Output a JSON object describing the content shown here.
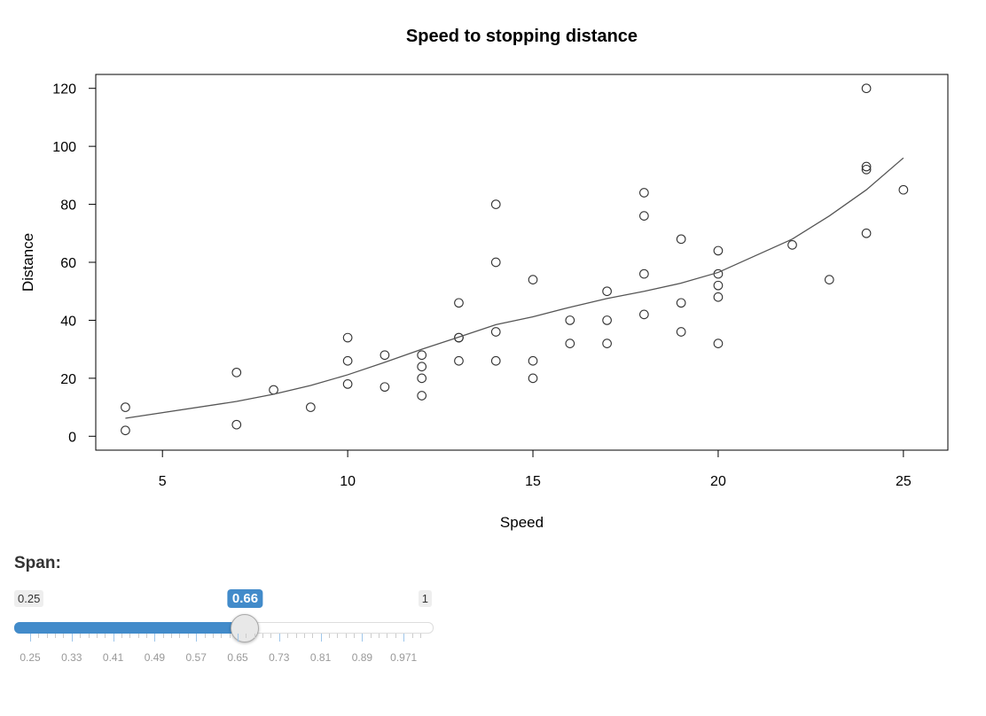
{
  "chart_data": {
    "type": "scatter",
    "title": "Speed to stopping distance",
    "xlabel": "Speed",
    "ylabel": "Distance",
    "xlim": [
      3.2,
      26.2
    ],
    "ylim": [
      -4.8,
      124.8
    ],
    "xticks": [
      5,
      10,
      15,
      20,
      25
    ],
    "yticks": [
      0,
      20,
      40,
      60,
      80,
      100,
      120
    ],
    "points": {
      "x": [
        4,
        4,
        7,
        7,
        8,
        9,
        10,
        10,
        10,
        11,
        11,
        12,
        12,
        12,
        12,
        13,
        13,
        13,
        13,
        14,
        14,
        14,
        14,
        15,
        15,
        15,
        16,
        16,
        17,
        17,
        17,
        18,
        18,
        18,
        18,
        19,
        19,
        19,
        20,
        20,
        20,
        20,
        20,
        22,
        23,
        24,
        24,
        24,
        24,
        25
      ],
      "y": [
        2,
        10,
        4,
        22,
        16,
        10,
        18,
        26,
        34,
        17,
        28,
        14,
        20,
        24,
        28,
        26,
        34,
        34,
        46,
        26,
        36,
        60,
        80,
        20,
        26,
        54,
        32,
        40,
        32,
        40,
        50,
        42,
        56,
        76,
        84,
        36,
        46,
        68,
        32,
        48,
        52,
        56,
        64,
        66,
        54,
        70,
        92,
        93,
        120,
        85
      ]
    },
    "smooth_line": {
      "x": [
        4,
        7,
        8,
        9,
        10,
        11,
        12,
        13,
        14,
        15,
        16,
        17,
        18,
        19,
        20,
        22,
        23,
        24,
        25
      ],
      "y": [
        6.2,
        12,
        14.5,
        17.5,
        21.2,
        25.5,
        30,
        34.2,
        38.5,
        41.2,
        44.5,
        47.5,
        50,
        52.8,
        56.5,
        68,
        76,
        85,
        96
      ]
    }
  },
  "slider": {
    "label": "Span:",
    "min": 0.25,
    "max": 1,
    "value": 0.66,
    "min_label": "0.25",
    "max_label": "1",
    "value_label": "0.66",
    "ticks": [
      "0.25",
      "0.33",
      "0.41",
      "0.49",
      "0.57",
      "0.65",
      "0.73",
      "0.81",
      "0.89",
      "0.971"
    ],
    "accent": "#428bca"
  }
}
